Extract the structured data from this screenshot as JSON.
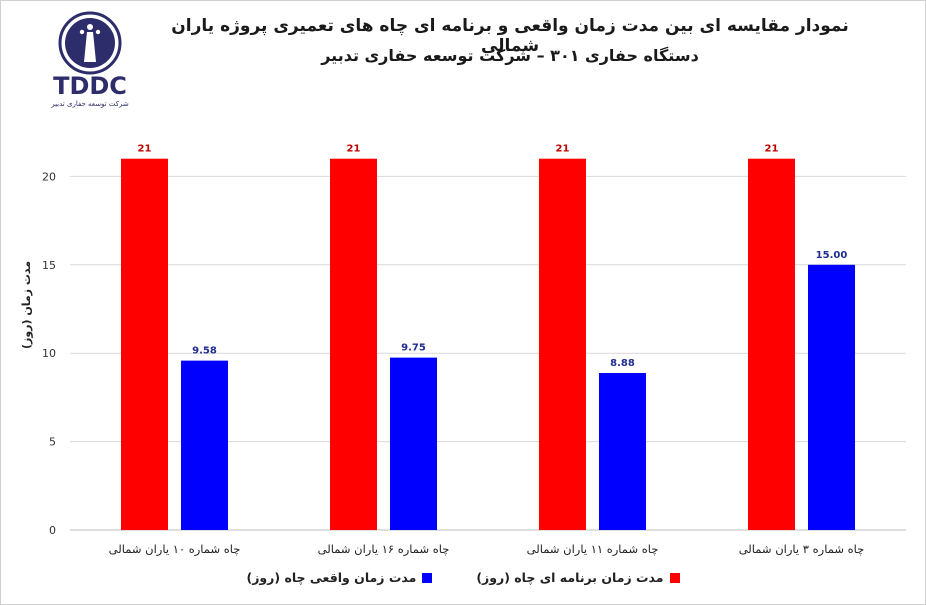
{
  "header": {
    "title": "نمودار مقایسه ای بین مدت زمان واقعی و برنامه ای چاه های تعمیری پروژه یاران شمالی",
    "subtitle": "دستگاه حفاری ۳۰۱ – شرکت توسعه حفاری تدبیر"
  },
  "logo": {
    "text": "TDDC",
    "tagline": "شرکت توسعه حفاری تدبیر",
    "color": "#2e2d6b"
  },
  "chart_data": {
    "type": "bar",
    "categories": [
      "چاه شماره ۳ یاران شمالی",
      "چاه شماره ۱۱ یاران شمالی",
      "چاه شماره ۱۶ یاران شمالی",
      "چاه شماره ۱۰ یاران شمالی"
    ],
    "series": [
      {
        "name": "مدت زمان برنامه ای چاه (روز)",
        "values": [
          21,
          21,
          21,
          21
        ],
        "labels": [
          "21",
          "21",
          "21",
          "21"
        ],
        "color": "#ff0000",
        "label_color": "#c00000"
      },
      {
        "name": "مدت زمان واقعی چاه  (روز)",
        "values": [
          15.0,
          8.88,
          9.75,
          9.58
        ],
        "labels": [
          "15.00",
          "8.88",
          "9.75",
          "9.58"
        ],
        "color": "#0000ff",
        "label_color": "#1f2d8f"
      }
    ],
    "ylabel": "مدت زمان (روز)",
    "ylim": [
      0,
      25
    ],
    "yticks": [
      0,
      5,
      10,
      15,
      20
    ],
    "grid": true,
    "legend_position": "bottom",
    "category_order": "right-to-left"
  }
}
